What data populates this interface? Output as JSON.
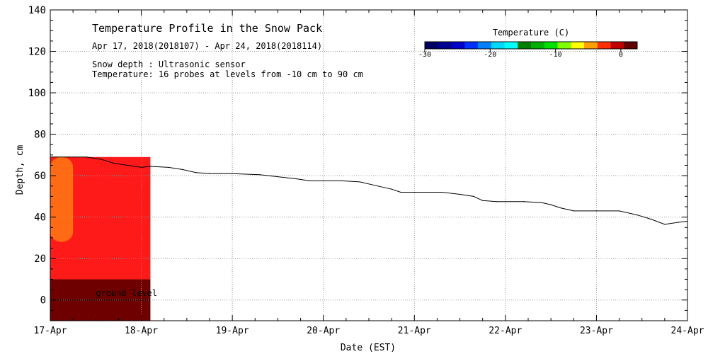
{
  "chart_data": {
    "type": "line",
    "title": "Temperature Profile in the Snow Pack",
    "subtitle": "Apr 17, 2018(2018107) - Apr 24, 2018(2018114)",
    "notes": [
      "Snow depth : Ultrasonic sensor",
      "Temperature: 16 probes at levels from -10 cm to 90 cm"
    ],
    "xlabel": "Date (EST)",
    "ylabel": "Depth, cm",
    "x_ticks": [
      "17-Apr",
      "18-Apr",
      "19-Apr",
      "20-Apr",
      "21-Apr",
      "22-Apr",
      "23-Apr",
      "24-Apr"
    ],
    "y_ticks": [
      0,
      20,
      40,
      60,
      80,
      100,
      120,
      140
    ],
    "xlim_days": [
      0,
      7
    ],
    "ylim": [
      -10,
      140
    ],
    "grid": true,
    "series": [
      {
        "name": "Snow depth",
        "color": "#000000",
        "points": [
          [
            0.0,
            69
          ],
          [
            0.2,
            69
          ],
          [
            0.4,
            69
          ],
          [
            0.55,
            68
          ],
          [
            0.7,
            66
          ],
          [
            0.85,
            65
          ],
          [
            1.0,
            64
          ],
          [
            1.1,
            64.5
          ],
          [
            1.3,
            64
          ],
          [
            1.45,
            63
          ],
          [
            1.6,
            61.5
          ],
          [
            1.75,
            61
          ],
          [
            2.0,
            61
          ],
          [
            2.3,
            60.5
          ],
          [
            2.5,
            59.5
          ],
          [
            2.7,
            58.5
          ],
          [
            2.85,
            57.5
          ],
          [
            3.0,
            57.5
          ],
          [
            3.2,
            57.5
          ],
          [
            3.4,
            57
          ],
          [
            3.6,
            55
          ],
          [
            3.75,
            53.5
          ],
          [
            3.85,
            52
          ],
          [
            4.0,
            52
          ],
          [
            4.3,
            52
          ],
          [
            4.5,
            51
          ],
          [
            4.65,
            50
          ],
          [
            4.75,
            48
          ],
          [
            4.9,
            47.5
          ],
          [
            5.0,
            47.5
          ],
          [
            5.2,
            47.5
          ],
          [
            5.4,
            47
          ],
          [
            5.5,
            46
          ],
          [
            5.6,
            44.5
          ],
          [
            5.75,
            43
          ],
          [
            6.0,
            43
          ],
          [
            6.25,
            43
          ],
          [
            6.45,
            41
          ],
          [
            6.6,
            39
          ],
          [
            6.75,
            36.5
          ],
          [
            6.9,
            37.5
          ],
          [
            7.0,
            38
          ]
        ]
      }
    ],
    "heatmap": {
      "x_range_days": [
        0,
        1.1
      ],
      "bands": [
        {
          "from": -10,
          "to": 0,
          "color": "#6e0000"
        },
        {
          "from": 0,
          "to": 10,
          "color": "#6e0000"
        },
        {
          "from": 10,
          "to": 69,
          "color": "#ff1a1a"
        },
        {
          "from": 28,
          "to": 69,
          "color": "#ff6a14",
          "x_to_days": 0.25
        }
      ],
      "label": "ground level"
    },
    "colorbar": {
      "title": "Temperature (C)",
      "ticks": [
        -30,
        -20,
        -10,
        0
      ],
      "colors": [
        "#000060",
        "#000090",
        "#0000c8",
        "#0030ff",
        "#0080ff",
        "#00d8ff",
        "#00ffff",
        "#008000",
        "#00b000",
        "#00e000",
        "#80ff00",
        "#ffff00",
        "#ffa000",
        "#ff3000",
        "#c00000",
        "#600000"
      ],
      "range": [
        -30,
        2.5
      ]
    }
  }
}
